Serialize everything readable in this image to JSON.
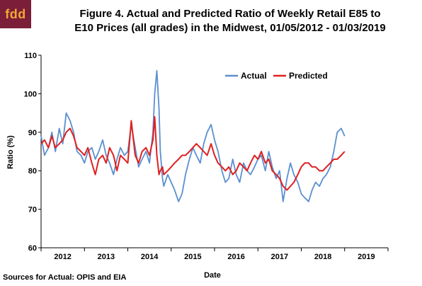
{
  "header": {
    "logo_text": "fdd",
    "title_line1": "Figure 4. Actual and Predicted Ratio of Weekly Retail E85 to",
    "title_line2": "E10 Prices (all grades) in the Midwest, 01/05/2012 - 01/03/2019"
  },
  "footer": {
    "source": "Sources for Actual: OPIS and EIA"
  },
  "colors": {
    "actual": "#5b8fd0",
    "predicted": "#e02020",
    "axis": "#000000",
    "logo_bg": "#7a1e3a",
    "logo_fg": "#f3a736"
  },
  "chart_data": {
    "type": "line",
    "title": "Figure 4. Actual and Predicted Ratio of Weekly Retail E85 to E10 Prices (all grades) in the Midwest, 01/05/2012 - 01/03/2019",
    "xlabel": "Date",
    "ylabel": "Ratio (%)",
    "ylim": [
      60,
      110
    ],
    "yticks": [
      60,
      70,
      80,
      90,
      100,
      110
    ],
    "xlim": [
      2012,
      2020
    ],
    "xticks": [
      "2012",
      "2013",
      "2014",
      "2015",
      "2016",
      "2017",
      "2018",
      "2019"
    ],
    "grid": false,
    "legend_position": "top-right",
    "series": [
      {
        "name": "Actual",
        "x": [
          2012.0,
          2012.08,
          2012.17,
          2012.25,
          2012.33,
          2012.42,
          2012.5,
          2012.58,
          2012.67,
          2012.75,
          2012.83,
          2012.92,
          2013.0,
          2013.08,
          2013.17,
          2013.25,
          2013.33,
          2013.42,
          2013.5,
          2013.58,
          2013.67,
          2013.75,
          2013.83,
          2013.92,
          2014.0,
          2014.08,
          2014.17,
          2014.25,
          2014.33,
          2014.42,
          2014.5,
          2014.58,
          2014.62,
          2014.67,
          2014.72,
          2014.75,
          2014.8,
          2014.83,
          2014.92,
          2015.0,
          2015.08,
          2015.17,
          2015.25,
          2015.33,
          2015.42,
          2015.5,
          2015.58,
          2015.67,
          2015.75,
          2015.83,
          2015.92,
          2016.0,
          2016.08,
          2016.17,
          2016.25,
          2016.33,
          2016.42,
          2016.5,
          2016.58,
          2016.67,
          2016.75,
          2016.83,
          2016.92,
          2017.0,
          2017.08,
          2017.17,
          2017.25,
          2017.33,
          2017.42,
          2017.5,
          2017.58,
          2017.67,
          2017.75,
          2017.83,
          2017.92,
          2018.0,
          2018.08,
          2018.17,
          2018.25,
          2018.33,
          2018.42,
          2018.5,
          2018.58,
          2018.67,
          2018.75,
          2018.83,
          2018.92,
          2019.0
        ],
        "values": [
          89,
          84,
          86,
          90,
          85,
          91,
          87,
          95,
          93,
          90,
          85,
          84,
          82,
          85,
          86,
          83,
          85,
          88,
          84,
          82,
          79,
          83,
          86,
          84,
          85,
          92,
          86,
          81,
          83,
          85,
          82,
          90,
          100,
          106,
          96,
          85,
          78,
          76,
          79,
          77,
          75,
          72,
          74,
          79,
          83,
          86,
          84,
          82,
          87,
          90,
          92,
          88,
          85,
          80,
          77,
          78,
          83,
          79,
          77,
          82,
          80,
          79,
          81,
          83,
          84,
          80,
          85,
          81,
          78,
          80,
          72,
          78,
          82,
          79,
          77,
          74,
          73,
          72,
          75,
          77,
          76,
          78,
          79,
          81,
          85,
          90,
          91,
          89
        ]
      },
      {
        "name": "Predicted",
        "x": [
          2012.0,
          2012.08,
          2012.17,
          2012.25,
          2012.33,
          2012.42,
          2012.5,
          2012.58,
          2012.67,
          2012.75,
          2012.83,
          2012.92,
          2013.0,
          2013.08,
          2013.17,
          2013.25,
          2013.33,
          2013.42,
          2013.5,
          2013.58,
          2013.67,
          2013.75,
          2013.83,
          2013.92,
          2014.0,
          2014.08,
          2014.17,
          2014.25,
          2014.33,
          2014.42,
          2014.5,
          2014.58,
          2014.62,
          2014.67,
          2014.72,
          2014.75,
          2014.8,
          2014.83,
          2014.92,
          2015.0,
          2015.08,
          2015.17,
          2015.25,
          2015.33,
          2015.42,
          2015.5,
          2015.58,
          2015.67,
          2015.75,
          2015.83,
          2015.92,
          2016.0,
          2016.08,
          2016.17,
          2016.25,
          2016.33,
          2016.42,
          2016.5,
          2016.58,
          2016.67,
          2016.75,
          2016.83,
          2016.92,
          2017.0,
          2017.08,
          2017.17,
          2017.25,
          2017.33,
          2017.42,
          2017.5,
          2017.58,
          2017.67,
          2017.75,
          2017.83,
          2017.92,
          2018.0,
          2018.08,
          2018.17,
          2018.25,
          2018.33,
          2018.42,
          2018.5,
          2018.58,
          2018.67,
          2018.75,
          2018.83,
          2018.92,
          2019.0
        ],
        "values": [
          87,
          88,
          86,
          89,
          86,
          87,
          88,
          90,
          91,
          89,
          86,
          85,
          84,
          86,
          82,
          79,
          83,
          84,
          82,
          86,
          84,
          80,
          84,
          83,
          82,
          93,
          84,
          82,
          85,
          86,
          84,
          88,
          94,
          84,
          79,
          80,
          81,
          79,
          80,
          81,
          82,
          83,
          84,
          84,
          85,
          86,
          87,
          86,
          85,
          84,
          87,
          84,
          82,
          81,
          80,
          81,
          79,
          80,
          82,
          81,
          80,
          82,
          84,
          83,
          85,
          82,
          83,
          80,
          79,
          78,
          76,
          75,
          76,
          77,
          79,
          81,
          82,
          82,
          81,
          81,
          80,
          80,
          81,
          82,
          83,
          83,
          84,
          85
        ]
      }
    ]
  }
}
